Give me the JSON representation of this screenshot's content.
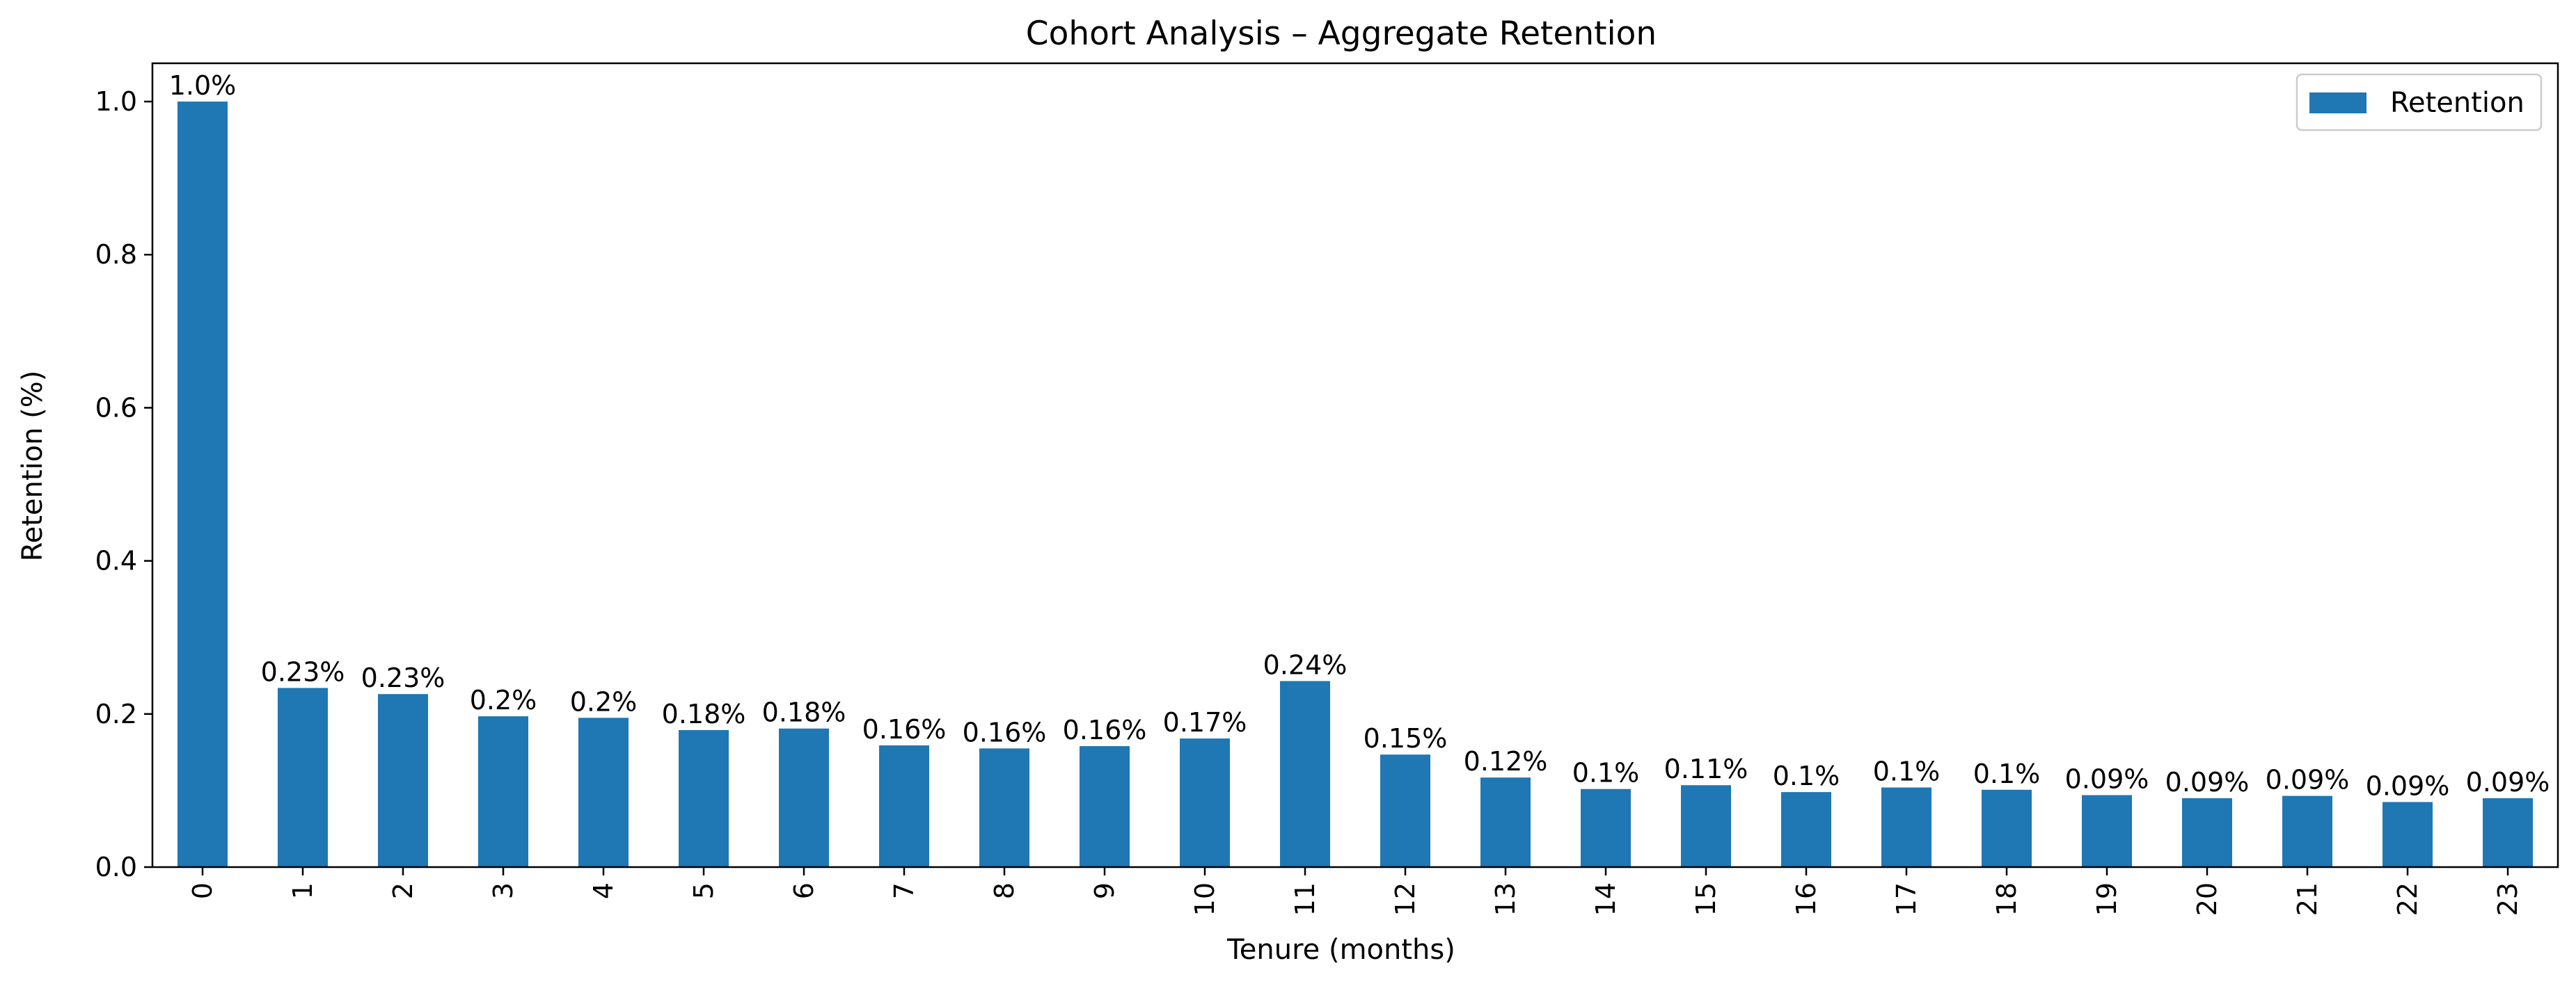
{
  "colors": {
    "bar": "#1f77b4",
    "axis": "#000000",
    "background": "#ffffff",
    "legend_border": "#cccccc"
  },
  "chart_data": {
    "type": "bar",
    "title": "Cohort Analysis – Aggregate Retention",
    "xlabel": "Tenure (months)",
    "ylabel": "Retention (%)",
    "categories": [
      "0",
      "1",
      "2",
      "3",
      "4",
      "5",
      "6",
      "7",
      "8",
      "9",
      "10",
      "11",
      "12",
      "13",
      "14",
      "15",
      "16",
      "17",
      "18",
      "19",
      "20",
      "21",
      "22",
      "23"
    ],
    "series": [
      {
        "name": "Retention",
        "values": [
          1.0,
          0.234,
          0.226,
          0.197,
          0.195,
          0.179,
          0.181,
          0.159,
          0.155,
          0.158,
          0.168,
          0.243,
          0.147,
          0.117,
          0.102,
          0.107,
          0.098,
          0.104,
          0.101,
          0.094,
          0.09,
          0.093,
          0.085,
          0.09
        ],
        "data_labels": [
          "1.0%",
          "0.23%",
          "0.23%",
          "0.2%",
          "0.2%",
          "0.18%",
          "0.18%",
          "0.16%",
          "0.16%",
          "0.16%",
          "0.17%",
          "0.24%",
          "0.15%",
          "0.12%",
          "0.1%",
          "0.11%",
          "0.1%",
          "0.1%",
          "0.1%",
          "0.09%",
          "0.09%",
          "0.09%",
          "0.09%",
          "0.09%"
        ]
      }
    ],
    "ylim": [
      0,
      1.05
    ],
    "yticks": [
      0.0,
      0.2,
      0.4,
      0.6,
      0.8,
      1.0
    ],
    "ytick_labels": [
      "0.0",
      "0.2",
      "0.4",
      "0.6",
      "0.8",
      "1.0"
    ],
    "grid": false,
    "legend_position": "upper right"
  }
}
